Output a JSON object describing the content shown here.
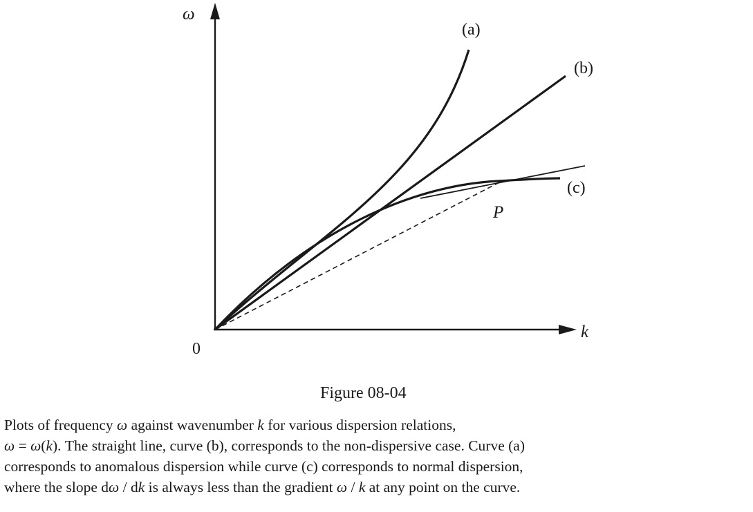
{
  "axes": {
    "y_label": "ω",
    "x_label": "k",
    "origin_label": "0"
  },
  "curves": {
    "a_label": "(a)",
    "b_label": "(b)",
    "c_label": "(c)",
    "point_label": "P"
  },
  "figure_title": "Figure 08-04",
  "caption": {
    "line1_a": "Plots of frequency ",
    "line1_omega": "ω",
    "line1_b": " against wavenumber ",
    "line1_k": "k",
    "line1_c": " for various dispersion relations,",
    "line2_omega1": "ω",
    "line2_eq": " = ",
    "line2_omega2": "ω",
    "line2_paren_open": "(",
    "line2_k": "k",
    "line2_rest": "). The straight line, curve (b), corresponds to the non-dispersive case. Curve (a)",
    "line3": "corresponds to anomalous dispersion while curve (c) corresponds to normal dispersion,",
    "line4_a": "where the slope d",
    "line4_omega": "ω",
    "line4_b": " / d",
    "line4_k": "k",
    "line4_c": " is always less than the gradient ",
    "line4_omega2": "ω",
    "line4_d": " / ",
    "line4_k2": "k",
    "line4_e": " at any point on the curve."
  }
}
